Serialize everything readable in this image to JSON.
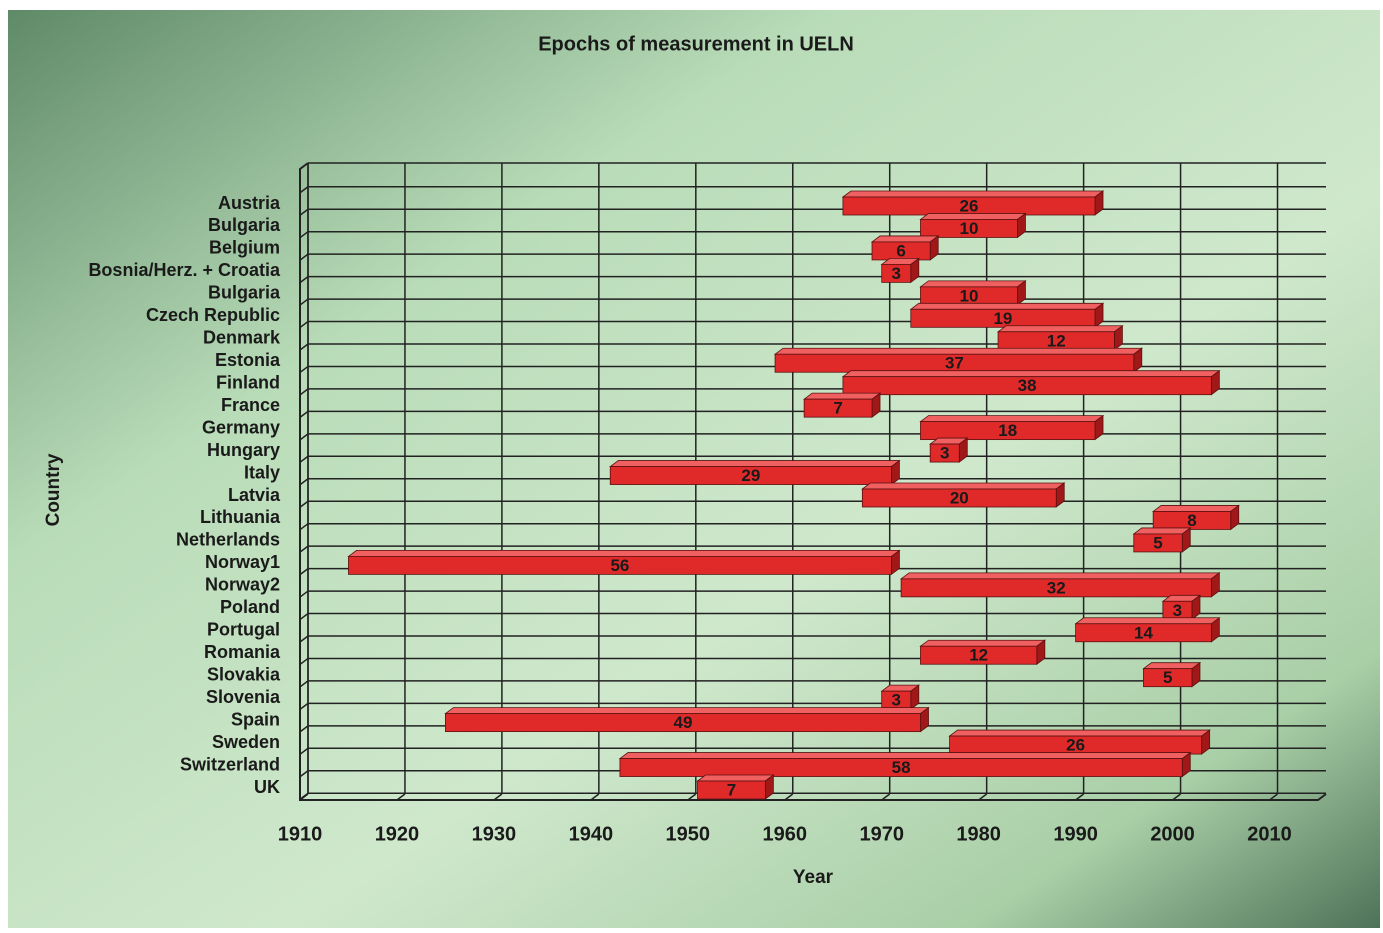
{
  "chart_data": {
    "type": "floating-bar",
    "title": "Epochs of measurement in UELN",
    "x_label": "Year",
    "y_label": "Country",
    "categories": [
      "Austria",
      "Bulgaria",
      "Belgium",
      "Bosnia/Herz. + Croatia",
      "Bulgaria",
      "Czech Republic",
      "Denmark",
      "Estonia",
      "Finland",
      "France",
      "Germany",
      "Hungary",
      "Italy",
      "Latvia",
      "Lithuania",
      "Netherlands",
      "Norway1",
      "Norway2",
      "Poland",
      "Portugal",
      "Romania",
      "Slovakia",
      "Slovenia",
      "Spain",
      "Sweden",
      "Switzerland",
      "UK"
    ],
    "starts": [
      1966,
      1974,
      1969,
      1970,
      1974,
      1973,
      1982,
      1959,
      1966,
      1962,
      1974,
      1975,
      1942,
      1968,
      1998,
      1996,
      1915,
      1972,
      1999,
      1990,
      1974,
      1997,
      1970,
      1925,
      1977,
      1943,
      1951
    ],
    "values": [
      26,
      10,
      6,
      3,
      10,
      19,
      12,
      37,
      38,
      7,
      18,
      3,
      29,
      20,
      8,
      5,
      56,
      32,
      3,
      14,
      12,
      5,
      3,
      49,
      26,
      58,
      7
    ],
    "color": "#e02a2a",
    "xlim": [
      1910,
      2015
    ],
    "xticks": [
      1910,
      1920,
      1930,
      1940,
      1950,
      1960,
      1970,
      1980,
      1990,
      2000,
      2010
    ],
    "grid": true
  }
}
